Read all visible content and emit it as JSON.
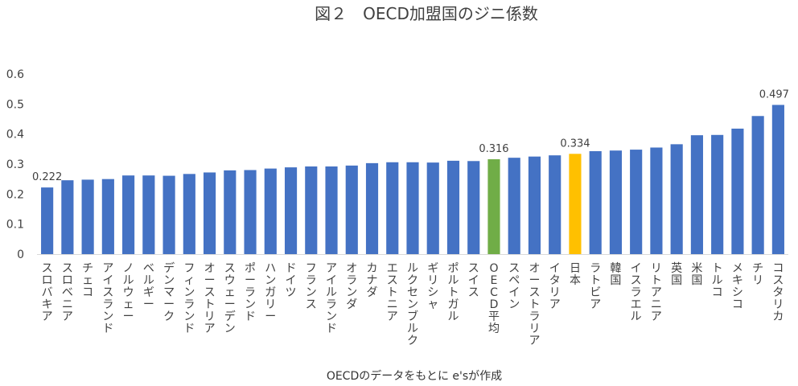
{
  "chart_data": {
    "type": "bar",
    "title": "図２　OECD加盟国のジニ係数",
    "source": "OECDのデータをもとに e'sが作成",
    "ylim": [
      0,
      0.6
    ],
    "yticks": [
      "0",
      "0.1",
      "0.2",
      "0.3",
      "0.4",
      "0.5",
      "0.6"
    ],
    "grid": false,
    "categories": [
      "スロバキア",
      "スロベニア",
      "チェコ",
      "アイスランド",
      "ノルウェー",
      "ベルギー",
      "デンマーク",
      "フィンランド",
      "オーストリア",
      "スウェーデン",
      "ポーランド",
      "ハンガリー",
      "ドイツ",
      "フランス",
      "アイルランド",
      "オランダ",
      "カナダ",
      "エストニア",
      "ルクセンブルク",
      "ギリシャ",
      "ポルトガル",
      "スイス",
      "OECD平均",
      "スペイン",
      "オーストラリア",
      "イタリア",
      "日本",
      "ラトビア",
      "韓国",
      "イスラエル",
      "リトアニア",
      "英国",
      "米国",
      "トルコ",
      "メキシコ",
      "チリ",
      "コスタリカ"
    ],
    "values": [
      0.222,
      0.246,
      0.248,
      0.25,
      0.262,
      0.262,
      0.261,
      0.267,
      0.272,
      0.279,
      0.28,
      0.285,
      0.289,
      0.292,
      0.292,
      0.295,
      0.303,
      0.306,
      0.306,
      0.305,
      0.311,
      0.31,
      0.316,
      0.321,
      0.325,
      0.329,
      0.334,
      0.343,
      0.345,
      0.348,
      0.355,
      0.366,
      0.396,
      0.397,
      0.418,
      0.46,
      0.497
    ],
    "data_labels": [
      {
        "index": 0,
        "text": "0.222"
      },
      {
        "index": 22,
        "text": "0.316"
      },
      {
        "index": 26,
        "text": "0.334"
      },
      {
        "index": 36,
        "text": "0.497"
      }
    ],
    "colors": {
      "default": "#4472C4",
      "highlights": [
        {
          "index": 22,
          "color": "#70AD47"
        },
        {
          "index": 26,
          "color": "#FFC000"
        }
      ],
      "text": "#404040"
    }
  }
}
